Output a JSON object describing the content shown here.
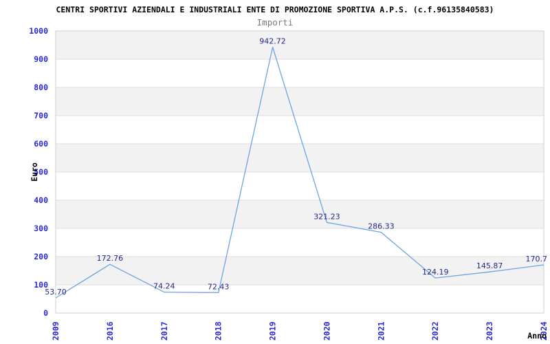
{
  "chart_data": {
    "type": "line",
    "title": "CENTRI SPORTIVI AZIENDALI E INDUSTRIALI ENTE DI PROMOZIONE SPORTIVA A.P.S. (c.f.96135840583)",
    "subtitle": "Importi",
    "xlabel": "Anno",
    "ylabel": "Euro",
    "categories": [
      "2009",
      "2016",
      "2017",
      "2018",
      "2019",
      "2020",
      "2021",
      "2022",
      "2023",
      "2024"
    ],
    "values": [
      53.7,
      172.76,
      74.24,
      72.43,
      942.72,
      321.23,
      286.33,
      124.19,
      145.87,
      170.7
    ],
    "data_labels": [
      "53.70",
      "172.76",
      "74.24",
      "72.43",
      "942.72",
      "321.23",
      "286.33",
      "124.19",
      "145.87",
      "170.7"
    ],
    "ylim": [
      0,
      1000
    ],
    "yticks": [
      0,
      100,
      200,
      300,
      400,
      500,
      600,
      700,
      800,
      900,
      1000
    ],
    "grid": "horizontal bands, alternating shaded every 100 units",
    "legend": "none",
    "colors": {
      "line": "#6ba3e2",
      "tick_label": "#2a2ad2",
      "data_label": "#26268a",
      "axis_title": "#000000",
      "subtitle": "#7a7a7a",
      "band": "#f2f2f2",
      "grid_line": "#dedede",
      "plot_border": "#cfcfcf",
      "background": "#ffffff"
    }
  }
}
